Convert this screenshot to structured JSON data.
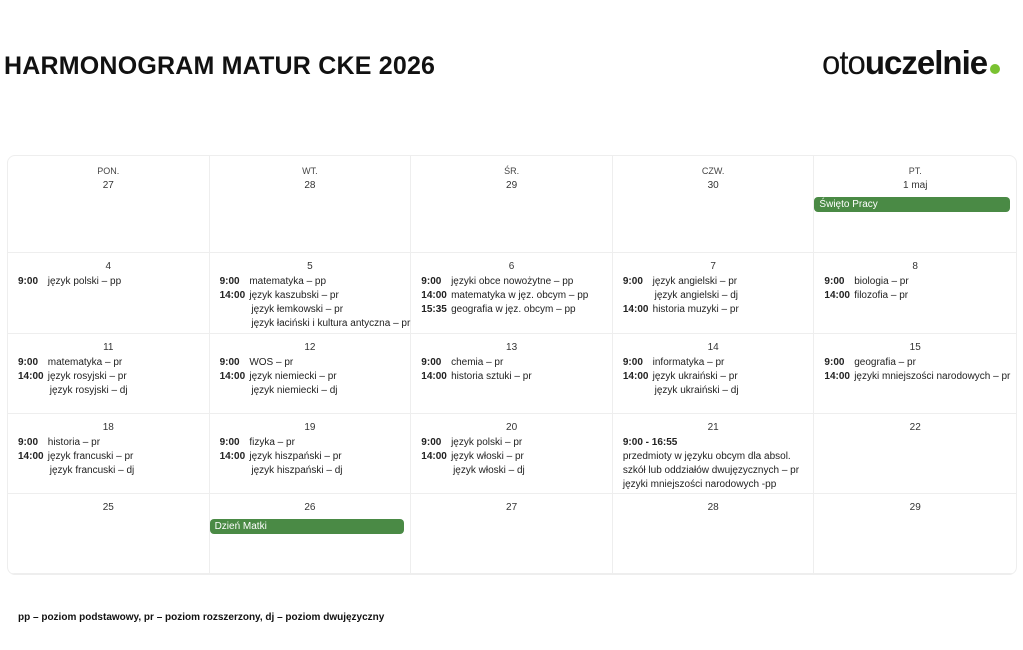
{
  "title": "HARMONOGRAM MATUR CKE 2026",
  "logo": {
    "part1": "oto",
    "part2": "uczelnie",
    "accent": "#7ac231"
  },
  "event_color": "#4a8a45",
  "weekdays": [
    "PON.",
    "WT.",
    "ŚR.",
    "CZW.",
    "PT."
  ],
  "cells": [
    {
      "day": "27",
      "lines": []
    },
    {
      "day": "28",
      "lines": []
    },
    {
      "day": "29",
      "lines": []
    },
    {
      "day": "30",
      "lines": []
    },
    {
      "day": "1 maj",
      "event": "Święto Pracy",
      "lines": []
    },
    {
      "day": "4",
      "lines": [
        {
          "time": "9:00",
          "text": "język polski – pp"
        }
      ]
    },
    {
      "day": "5",
      "lines": [
        {
          "time": "9:00",
          "text": "matematyka – pp"
        },
        {
          "time": "14:00",
          "text": "język kaszubski – pr"
        },
        {
          "time": "",
          "text": "język łemkowski – pr"
        },
        {
          "time": "",
          "text": "język łaciński i kultura antyczna – pr"
        }
      ]
    },
    {
      "day": "6",
      "lines": [
        {
          "time": "9:00",
          "text": "języki obce nowożytne – pp"
        },
        {
          "time": "14:00",
          "text": "matematyka w jęz. obcym – pp"
        },
        {
          "time": "15:35",
          "text": "geografia w jęz. obcym – pp"
        }
      ]
    },
    {
      "day": "7",
      "lines": [
        {
          "time": "9:00",
          "text": "język angielski – pr"
        },
        {
          "time": "",
          "text": "język angielski – dj"
        },
        {
          "time": "14:00",
          "text": "historia muzyki – pr"
        }
      ]
    },
    {
      "day": "8",
      "lines": [
        {
          "time": "9:00",
          "text": "biologia – pr"
        },
        {
          "time": "14:00",
          "text": "filozofia – pr"
        }
      ]
    },
    {
      "day": "11",
      "lines": [
        {
          "time": "9:00",
          "text": "matematyka – pr"
        },
        {
          "time": "14:00",
          "text": "język rosyjski – pr"
        },
        {
          "time": "",
          "text": "język rosyjski – dj"
        }
      ]
    },
    {
      "day": "12",
      "lines": [
        {
          "time": "9:00",
          "text": "WOS – pr"
        },
        {
          "time": "14:00",
          "text": "język niemiecki – pr"
        },
        {
          "time": "",
          "text": "język niemiecki – dj"
        }
      ]
    },
    {
      "day": "13",
      "lines": [
        {
          "time": "9:00",
          "text": "chemia – pr"
        },
        {
          "time": "14:00",
          "text": "historia sztuki – pr"
        }
      ]
    },
    {
      "day": "14",
      "lines": [
        {
          "time": "9:00",
          "text": "informatyka – pr"
        },
        {
          "time": "14:00",
          "text": "język ukraiński – pr"
        },
        {
          "time": "",
          "text": "język ukraiński – dj"
        }
      ]
    },
    {
      "day": "15",
      "lines": [
        {
          "time": "9:00",
          "text": "geografia – pr"
        },
        {
          "time": "14:00",
          "text": "języki mniejszości narodowych – pr"
        }
      ]
    },
    {
      "day": "18",
      "lines": [
        {
          "time": "9:00",
          "text": "historia – pr"
        },
        {
          "time": "14:00",
          "text": "język francuski – pr"
        },
        {
          "time": "",
          "text": "język francuski – dj"
        }
      ]
    },
    {
      "day": "19",
      "lines": [
        {
          "time": "9:00",
          "text": "fizyka – pr"
        },
        {
          "time": "14:00",
          "text": "język hiszpański – pr"
        },
        {
          "time": "",
          "text": "język hiszpański – dj"
        }
      ]
    },
    {
      "day": "20",
      "lines": [
        {
          "time": "9:00",
          "text": "język polski – pr"
        },
        {
          "time": "14:00",
          "text": "język włoski – pr"
        },
        {
          "time": "",
          "text": "język włoski – dj"
        }
      ]
    },
    {
      "day": "21",
      "block_time": "9:00 - 16:55",
      "plain": [
        "przedmioty w języku obcym dla absol.",
        "szkół lub oddziałów dwujęzycznych – pr",
        "języki mniejszości narodowych -pp"
      ],
      "lines": []
    },
    {
      "day": "22",
      "lines": []
    },
    {
      "day": "25",
      "lines": []
    },
    {
      "day": "26",
      "event": "Dzień Matki",
      "lines": []
    },
    {
      "day": "27",
      "lines": []
    },
    {
      "day": "28",
      "lines": []
    },
    {
      "day": "29",
      "lines": []
    }
  ],
  "footnote": "pp – poziom podstawowy, pr – poziom rozszerzony, dj – poziom dwujęzyczny"
}
